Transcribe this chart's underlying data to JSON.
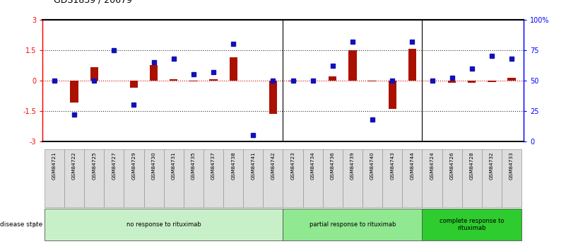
{
  "title": "GDS1839 / 20679",
  "samples": [
    "GSM84721",
    "GSM84722",
    "GSM84725",
    "GSM84727",
    "GSM84729",
    "GSM84730",
    "GSM84731",
    "GSM84735",
    "GSM84737",
    "GSM84738",
    "GSM84741",
    "GSM84742",
    "GSM84723",
    "GSM84734",
    "GSM84736",
    "GSM84739",
    "GSM84740",
    "GSM84743",
    "GSM84744",
    "GSM84724",
    "GSM84726",
    "GSM84728",
    "GSM84732",
    "GSM84733"
  ],
  "log2_ratio": [
    0.0,
    -1.1,
    0.65,
    0.0,
    -0.35,
    0.75,
    0.05,
    -0.05,
    0.05,
    1.15,
    0.0,
    -1.65,
    -0.05,
    0.0,
    0.2,
    1.5,
    -0.05,
    -1.4,
    1.55,
    0.0,
    -0.1,
    -0.1,
    -0.08,
    0.12
  ],
  "percentile": [
    50,
    22,
    50,
    75,
    30,
    65,
    68,
    55,
    57,
    80,
    5,
    50,
    50,
    50,
    62,
    82,
    18,
    50,
    82,
    50,
    52,
    60,
    70,
    68
  ],
  "groups": [
    {
      "label": "no response to rituximab",
      "start": 0,
      "end": 11,
      "color": "#c8f0c8"
    },
    {
      "label": "partial response to rituximab",
      "start": 12,
      "end": 18,
      "color": "#90e890"
    },
    {
      "label": "complete response to\nrituximab",
      "start": 19,
      "end": 23,
      "color": "#2ecc2e"
    }
  ],
  "ylim_left": [
    -3,
    3
  ],
  "ylim_right": [
    0,
    100
  ],
  "yticks_left": [
    -3,
    -1.5,
    0,
    1.5,
    3
  ],
  "yticks_right": [
    0,
    25,
    50,
    75,
    100
  ],
  "ytick_labels_right": [
    "0",
    "25",
    "50",
    "75",
    "100%"
  ],
  "bar_color": "#aa1100",
  "dot_color": "#1111bb",
  "hline_color": "#cc0000",
  "dotted_color": "#333333",
  "bg_color": "#ffffff",
  "group_sep_indices": [
    11.5,
    18.5
  ]
}
